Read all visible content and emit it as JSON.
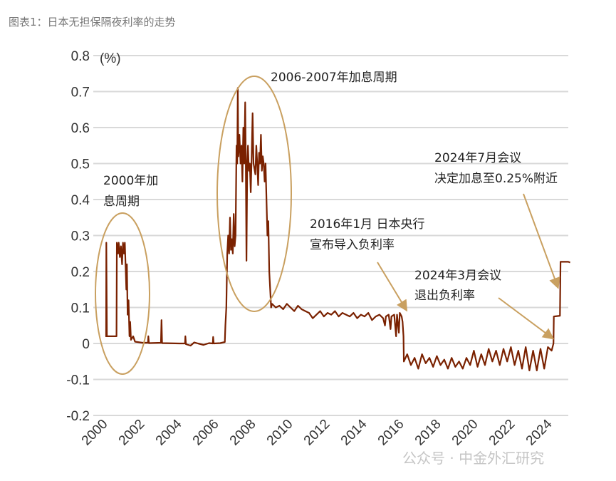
{
  "title": "图表1：日本无担保隔夜利率的走势",
  "watermark": "公众号 · 中金外汇研究",
  "chart_data": {
    "type": "line",
    "title": "",
    "ylabel": "(%)",
    "xlabel": "",
    "ylim": [
      -0.2,
      0.8
    ],
    "yticks": [
      "0.8",
      "0.7",
      "0.6",
      "0.5",
      "0.4",
      "0.3",
      "0.2",
      "0.1",
      "0",
      "-0.1",
      "-0.2"
    ],
    "xticks": [
      "2000",
      "2002",
      "2004",
      "2006",
      "2008",
      "2010",
      "2012",
      "2014",
      "2016",
      "2018",
      "2020",
      "2022",
      "2024"
    ],
    "grid": true,
    "line_color": "#7a2100",
    "annotation_color": "#c9a060",
    "annotations": [
      {
        "lines": [
          "2000年加",
          "息周期"
        ],
        "type": "ellipse"
      },
      {
        "lines": [
          "2006-2007年加息周期"
        ],
        "type": "ellipse"
      },
      {
        "lines": [
          "2016年1月 日本央行",
          "宣布导入负利率"
        ],
        "type": "arrow"
      },
      {
        "lines": [
          "2024年3月会议",
          "退出负利率"
        ],
        "type": "arrow"
      },
      {
        "lines": [
          "2024年7月会议",
          "决定加息至0.25%附近"
        ],
        "type": "arrow"
      }
    ],
    "series": [
      {
        "points": [
          [
            2000.0,
            0.02
          ],
          [
            2000.04,
            0.02
          ],
          [
            2000.05,
            0.28
          ],
          [
            2000.08,
            0.02
          ],
          [
            2000.6,
            0.02
          ],
          [
            2000.62,
            0.28
          ],
          [
            2000.68,
            0.25
          ],
          [
            2000.72,
            0.28
          ],
          [
            2000.78,
            0.24
          ],
          [
            2000.84,
            0.27
          ],
          [
            2000.9,
            0.22
          ],
          [
            2000.95,
            0.28
          ],
          [
            2001.0,
            0.25
          ],
          [
            2001.05,
            0.28
          ],
          [
            2001.1,
            0.2
          ],
          [
            2001.13,
            0.15
          ],
          [
            2001.16,
            0.22
          ],
          [
            2001.2,
            0.08
          ],
          [
            2001.25,
            0.12
          ],
          [
            2001.3,
            0.02
          ],
          [
            2001.34,
            0.06
          ],
          [
            2001.38,
            0.01
          ],
          [
            2001.5,
            0.02
          ],
          [
            2001.6,
            0.005
          ],
          [
            2002.0,
            0.002
          ],
          [
            2002.3,
            0.002
          ],
          [
            2002.32,
            0.02
          ],
          [
            2002.35,
            0.001
          ],
          [
            2003.0,
            0.002
          ],
          [
            2003.03,
            0.065
          ],
          [
            2003.06,
            0.001
          ],
          [
            2004.0,
            0.0
          ],
          [
            2004.3,
            0.0
          ],
          [
            2004.32,
            0.02
          ],
          [
            2004.35,
            -0.002
          ],
          [
            2004.6,
            -0.006
          ],
          [
            2004.8,
            0.003
          ],
          [
            2005.0,
            0.0
          ],
          [
            2005.3,
            -0.004
          ],
          [
            2005.6,
            0.001
          ],
          [
            2005.8,
            0.0
          ],
          [
            2005.82,
            0.018
          ],
          [
            2005.85,
            0.0
          ],
          [
            2006.2,
            0.001
          ],
          [
            2006.45,
            0.004
          ],
          [
            2006.48,
            0.05
          ],
          [
            2006.53,
            0.1
          ],
          [
            2006.58,
            0.25
          ],
          [
            2006.63,
            0.3
          ],
          [
            2006.68,
            0.25
          ],
          [
            2006.73,
            0.35
          ],
          [
            2006.78,
            0.26
          ],
          [
            2006.83,
            0.29
          ],
          [
            2006.88,
            0.25
          ],
          [
            2006.93,
            0.36
          ],
          [
            2006.98,
            0.27
          ],
          [
            2007.03,
            0.3
          ],
          [
            2007.08,
            0.55
          ],
          [
            2007.12,
            0.5
          ],
          [
            2007.15,
            0.71
          ],
          [
            2007.18,
            0.52
          ],
          [
            2007.24,
            0.58
          ],
          [
            2007.3,
            0.5
          ],
          [
            2007.35,
            0.55
          ],
          [
            2007.4,
            0.45
          ],
          [
            2007.45,
            0.6
          ],
          [
            2007.5,
            0.5
          ],
          [
            2007.55,
            0.67
          ],
          [
            2007.58,
            0.52
          ],
          [
            2007.62,
            0.23
          ],
          [
            2007.66,
            0.5
          ],
          [
            2007.7,
            0.55
          ],
          [
            2007.75,
            0.48
          ],
          [
            2007.8,
            0.5
          ],
          [
            2007.85,
            0.42
          ],
          [
            2007.9,
            0.52
          ],
          [
            2007.95,
            0.64
          ],
          [
            2008.0,
            0.5
          ],
          [
            2008.1,
            0.47
          ],
          [
            2008.15,
            0.55
          ],
          [
            2008.2,
            0.5
          ],
          [
            2008.25,
            0.44
          ],
          [
            2008.3,
            0.53
          ],
          [
            2008.35,
            0.5
          ],
          [
            2008.4,
            0.58
          ],
          [
            2008.45,
            0.48
          ],
          [
            2008.5,
            0.52
          ],
          [
            2008.55,
            0.5
          ],
          [
            2008.6,
            0.45
          ],
          [
            2008.65,
            0.5
          ],
          [
            2008.7,
            0.4
          ],
          [
            2008.75,
            0.3
          ],
          [
            2008.8,
            0.34
          ],
          [
            2008.85,
            0.2
          ],
          [
            2008.9,
            0.15
          ],
          [
            2008.95,
            0.1
          ],
          [
            2009.0,
            0.11
          ],
          [
            2009.2,
            0.1
          ],
          [
            2009.4,
            0.105
          ],
          [
            2009.6,
            0.095
          ],
          [
            2009.8,
            0.11
          ],
          [
            2010.0,
            0.1
          ],
          [
            2010.2,
            0.09
          ],
          [
            2010.4,
            0.105
          ],
          [
            2010.6,
            0.095
          ],
          [
            2010.8,
            0.09
          ],
          [
            2011.0,
            0.085
          ],
          [
            2011.2,
            0.07
          ],
          [
            2011.4,
            0.08
          ],
          [
            2011.6,
            0.09
          ],
          [
            2011.8,
            0.075
          ],
          [
            2012.0,
            0.085
          ],
          [
            2012.2,
            0.08
          ],
          [
            2012.4,
            0.09
          ],
          [
            2012.6,
            0.075
          ],
          [
            2012.8,
            0.085
          ],
          [
            2013.0,
            0.08
          ],
          [
            2013.2,
            0.075
          ],
          [
            2013.4,
            0.085
          ],
          [
            2013.6,
            0.07
          ],
          [
            2013.8,
            0.08
          ],
          [
            2014.0,
            0.075
          ],
          [
            2014.2,
            0.085
          ],
          [
            2014.4,
            0.065
          ],
          [
            2014.6,
            0.075
          ],
          [
            2014.8,
            0.08
          ],
          [
            2015.0,
            0.07
          ],
          [
            2015.1,
            0.05
          ],
          [
            2015.15,
            0.075
          ],
          [
            2015.3,
            0.08
          ],
          [
            2015.4,
            0.04
          ],
          [
            2015.45,
            0.075
          ],
          [
            2015.6,
            0.08
          ],
          [
            2015.7,
            0.02
          ],
          [
            2015.75,
            0.08
          ],
          [
            2015.85,
            0.03
          ],
          [
            2015.9,
            0.085
          ],
          [
            2016.0,
            0.075
          ],
          [
            2016.05,
            0.06
          ],
          [
            2016.1,
            0.02
          ],
          [
            2016.12,
            -0.05
          ],
          [
            2016.3,
            -0.03
          ],
          [
            2016.5,
            -0.06
          ],
          [
            2016.7,
            -0.04
          ],
          [
            2016.9,
            -0.07
          ],
          [
            2017.1,
            -0.03
          ],
          [
            2017.3,
            -0.055
          ],
          [
            2017.5,
            -0.04
          ],
          [
            2017.7,
            -0.065
          ],
          [
            2017.9,
            -0.035
          ],
          [
            2018.1,
            -0.06
          ],
          [
            2018.3,
            -0.045
          ],
          [
            2018.5,
            -0.07
          ],
          [
            2018.7,
            -0.04
          ],
          [
            2018.9,
            -0.065
          ],
          [
            2019.1,
            -0.05
          ],
          [
            2019.3,
            -0.07
          ],
          [
            2019.5,
            -0.04
          ],
          [
            2019.7,
            -0.06
          ],
          [
            2019.9,
            -0.02
          ],
          [
            2020.1,
            -0.065
          ],
          [
            2020.3,
            -0.03
          ],
          [
            2020.5,
            -0.06
          ],
          [
            2020.7,
            -0.015
          ],
          [
            2020.9,
            -0.05
          ],
          [
            2021.1,
            -0.02
          ],
          [
            2021.3,
            -0.06
          ],
          [
            2021.5,
            -0.015
          ],
          [
            2021.7,
            -0.05
          ],
          [
            2021.9,
            -0.01
          ],
          [
            2022.1,
            -0.06
          ],
          [
            2022.3,
            -0.02
          ],
          [
            2022.5,
            -0.07
          ],
          [
            2022.7,
            -0.01
          ],
          [
            2022.9,
            -0.075
          ],
          [
            2023.1,
            -0.02
          ],
          [
            2023.3,
            -0.075
          ],
          [
            2023.5,
            -0.015
          ],
          [
            2023.7,
            -0.07
          ],
          [
            2023.9,
            -0.01
          ],
          [
            2024.1,
            -0.02
          ],
          [
            2024.2,
            0.0
          ],
          [
            2024.22,
            0.075
          ],
          [
            2024.55,
            0.077
          ],
          [
            2024.58,
            0.227
          ],
          [
            2025.0,
            0.227
          ],
          [
            2025.1,
            0.225
          ]
        ]
      }
    ]
  }
}
